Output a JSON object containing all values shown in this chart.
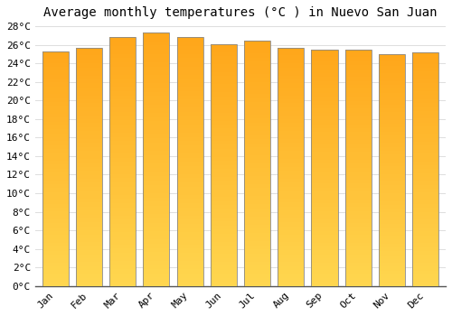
{
  "title": "Average monthly temperatures (°C ) in Nuevo San Juan",
  "months": [
    "Jan",
    "Feb",
    "Mar",
    "Apr",
    "May",
    "Jun",
    "Jul",
    "Aug",
    "Sep",
    "Oct",
    "Nov",
    "Dec"
  ],
  "temperatures": [
    25.3,
    25.7,
    26.8,
    27.3,
    26.8,
    26.1,
    26.4,
    25.7,
    25.5,
    25.5,
    25.0,
    25.2
  ],
  "bar_color_center": "#FFD54F",
  "bar_color_edge": "#FFA000",
  "bar_edge_color": "#888888",
  "ylim": [
    0,
    28
  ],
  "ytick_step": 2,
  "background_color": "#FFFFFF",
  "grid_color": "#DDDDDD",
  "title_fontsize": 10,
  "tick_fontsize": 8,
  "bar_width": 0.78
}
